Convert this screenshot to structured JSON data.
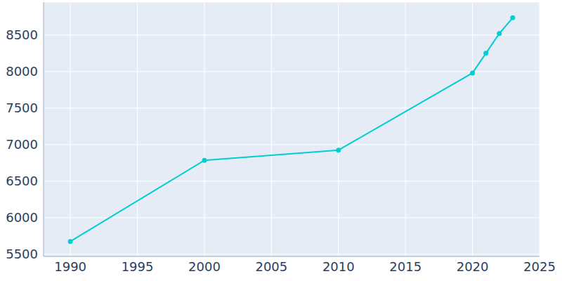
{
  "chart_data": {
    "type": "line",
    "x": [
      1990,
      2000,
      2010,
      2020,
      2021,
      2022,
      2023
    ],
    "values": [
      5675,
      6785,
      6925,
      7980,
      8250,
      8520,
      8735
    ],
    "color": "#00ced1",
    "marker": "circle",
    "xlim": [
      1988,
      2025
    ],
    "xticks": [
      1990,
      1995,
      2000,
      2005,
      2010,
      2015,
      2020,
      2025
    ],
    "ylim": [
      5470,
      8950
    ],
    "yticks": [
      5500,
      6000,
      6500,
      7000,
      7500,
      8000,
      8500
    ],
    "grid": true
  }
}
